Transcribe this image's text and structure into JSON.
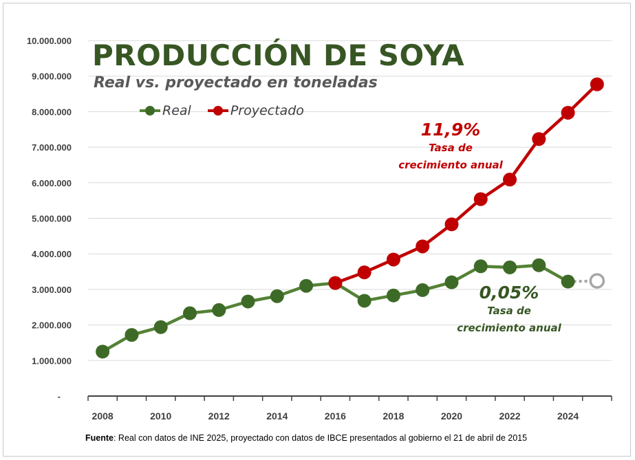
{
  "chart_data": {
    "type": "line",
    "title": "PRODUCCIÓN DE SOYA",
    "subtitle": "Real vs. proyectado en toneladas",
    "xlabel": "",
    "ylabel": "",
    "ylim": [
      0,
      10000000
    ],
    "y_ticks": [
      "-",
      "1.000.000",
      "2.000.000",
      "3.000.000",
      "4.000.000",
      "5.000.000",
      "6.000.000",
      "7.000.000",
      "8.000.000",
      "9.000.000",
      "10.000.000"
    ],
    "x_ticks": [
      "2008",
      "2010",
      "2012",
      "2014",
      "2016",
      "2018",
      "2020",
      "2022",
      "2024"
    ],
    "grid": true,
    "legend_position": "top-left",
    "series": [
      {
        "name": "Real",
        "color": "#548235",
        "x": [
          2008,
          2009,
          2010,
          2011,
          2012,
          2013,
          2014,
          2015,
          2016,
          2017,
          2018,
          2019,
          2020,
          2021,
          2022,
          2023,
          2024
        ],
        "values": [
          1250000,
          1720000,
          1940000,
          2330000,
          2420000,
          2660000,
          2810000,
          3100000,
          3180000,
          2680000,
          2830000,
          2980000,
          3200000,
          3650000,
          3620000,
          3680000,
          3220000
        ]
      },
      {
        "name": "Proyectado",
        "color": "#c00000",
        "x": [
          2016,
          2017,
          2018,
          2019,
          2020,
          2021,
          2022,
          2023,
          2024,
          2025
        ],
        "values": [
          3180000,
          3480000,
          3840000,
          4210000,
          4830000,
          5540000,
          6090000,
          7230000,
          7970000,
          8770000
        ]
      }
    ],
    "extrapolated_point": {
      "x": 2025,
      "value": 3240000,
      "color": "#a6a6a6"
    },
    "annotations": [
      {
        "rate": "11,9%",
        "line1": "Tasa de",
        "line2": "crecimiento anual",
        "color": "#c00000"
      },
      {
        "rate": "0,05%",
        "line1": "Tasa de",
        "line2": "crecimiento anual",
        "color": "#375623"
      }
    ]
  },
  "source": {
    "label": "Fuente",
    "text": ": Real con datos de INE 2025, proyectado con datos de IBCE presentados al gobierno el 21 de abril de 2015"
  }
}
